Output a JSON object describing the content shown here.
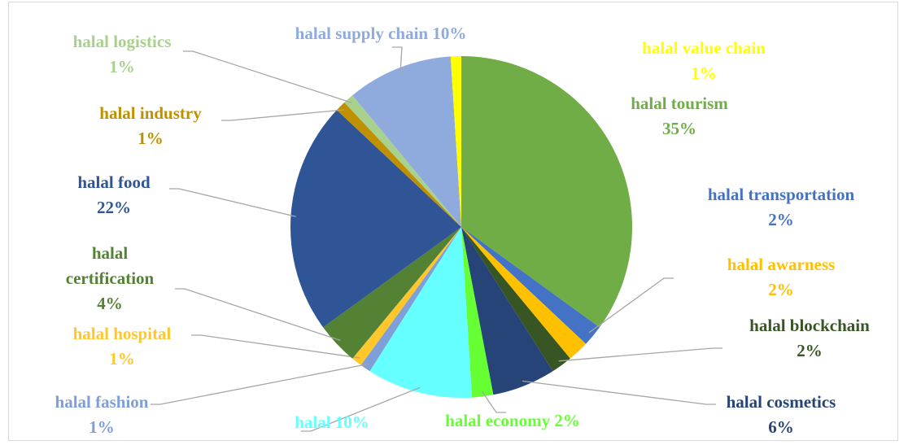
{
  "chart_data": {
    "type": "pie",
    "categories": [
      "halal tourism",
      "halal transportation",
      "halal awarness",
      "halal blockchain",
      "halal cosmetics",
      "halal economy",
      "halal",
      "halal fashion",
      "halal hospital",
      "halal certification",
      "halal food",
      "halal industry",
      "halal logistics",
      "halal supply chain",
      "halal value chain"
    ],
    "values": [
      35,
      2,
      2,
      2,
      6,
      2,
      10,
      1,
      1,
      4,
      22,
      1,
      1,
      10,
      1
    ],
    "value_labels": [
      "35%",
      "2%",
      "2%",
      "2%",
      "6%",
      "2%",
      "10%",
      "1%",
      "1%",
      "4%",
      "22%",
      "1%",
      "1%",
      "10%",
      "1%"
    ],
    "colors": [
      "#70ad47",
      "#4472c4",
      "#ffc000",
      "#375623",
      "#264478",
      "#66ff33",
      "#66ffff",
      "#7f9fd8",
      "#ffc72c",
      "#548235",
      "#2f5597",
      "#bf9000",
      "#a9d18e",
      "#8faadc",
      "#ffff00"
    ]
  }
}
